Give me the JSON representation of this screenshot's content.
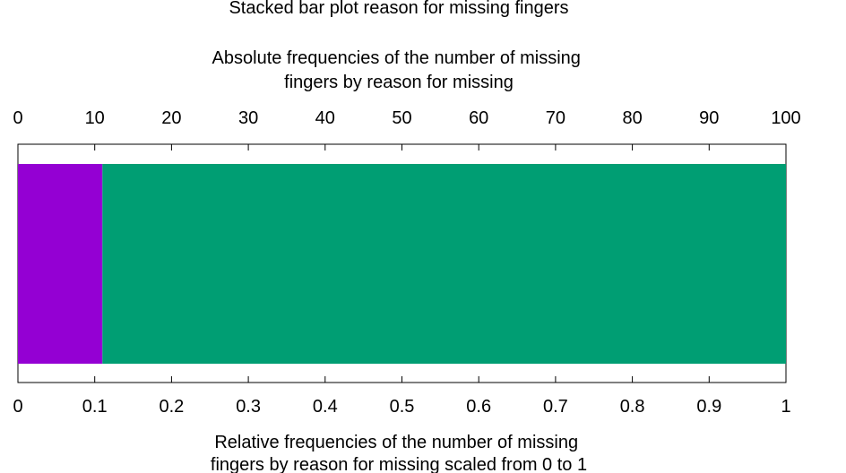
{
  "chart_data": {
    "type": "bar",
    "orientation": "horizontal",
    "stacked": true,
    "title": "Stacked bar plot reason for missing fingers",
    "top_axis": {
      "label_lines": [
        "Absolute frequencies of the number of missing",
        "fingers by reason for missing"
      ],
      "range": [
        0,
        100
      ],
      "ticks": [
        "0",
        "10",
        "20",
        "30",
        "40",
        "50",
        "60",
        "70",
        "80",
        "90",
        "100"
      ]
    },
    "bottom_axis": {
      "label_lines": [
        "Relative frequencies of the number of missing",
        "fingers by reason for missing scaled from 0 to 1"
      ],
      "range": [
        0,
        1
      ],
      "ticks": [
        "0",
        "0.1",
        "0.2",
        "0.3",
        "0.4",
        "0.5",
        "0.6",
        "0.7",
        "0.8",
        "0.9",
        "1"
      ]
    },
    "series": [
      {
        "values": [
          0.11
        ],
        "color": "#9400d3"
      },
      {
        "values": [
          0.89
        ],
        "color": "#009e73"
      }
    ],
    "grid": false,
    "legend": "none"
  }
}
